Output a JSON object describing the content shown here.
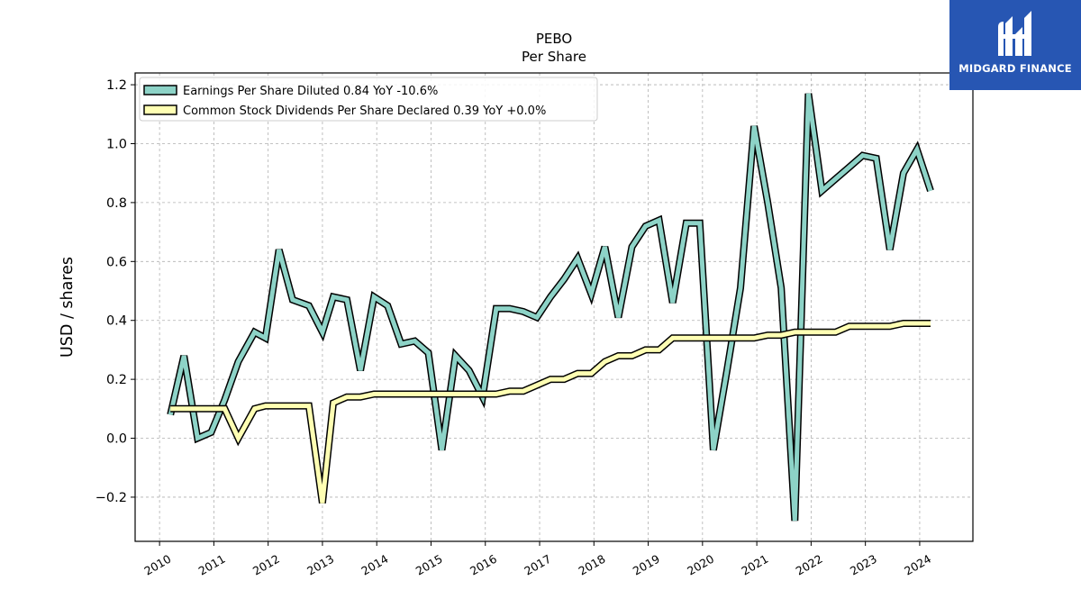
{
  "logo": {
    "text": "MIDGARD FINANCE",
    "icon": "midgard-logo-icon",
    "background": "#2756b3"
  },
  "chart_data": {
    "type": "line",
    "title": "PEBO",
    "subtitle": "Per  Share",
    "xlabel": "",
    "ylabel": "USD / shares",
    "xlim": [
      2009.55,
      2024.98
    ],
    "ylim": [
      -0.35,
      1.24
    ],
    "x_ticks": [
      2010,
      2011,
      2012,
      2013,
      2014,
      2015,
      2016,
      2017,
      2018,
      2019,
      2020,
      2021,
      2022,
      2023,
      2024
    ],
    "x_tick_labels": [
      "2010",
      "2011",
      "2012",
      "2013",
      "2014",
      "2015",
      "2016",
      "2017",
      "2018",
      "2019",
      "2020",
      "2021",
      "2022",
      "2023",
      "2024"
    ],
    "y_ticks": [
      -0.2,
      0.0,
      0.2,
      0.4,
      0.6,
      0.8,
      1.0,
      1.2
    ],
    "y_tick_labels": [
      "−0.2",
      "0.0",
      "0.2",
      "0.4",
      "0.6",
      "0.8",
      "1.0",
      "1.2"
    ],
    "grid": true,
    "legend_position": "top-left",
    "series": [
      {
        "name": "Earnings Per Share Diluted",
        "legend_value": "0.84 YoY -10.6%",
        "color": "#8dd3c7",
        "x": [
          2010.2,
          2010.45,
          2010.7,
          2010.95,
          2011.2,
          2011.45,
          2011.75,
          2011.95,
          2012.2,
          2012.45,
          2012.75,
          2013.0,
          2013.2,
          2013.45,
          2013.7,
          2013.95,
          2014.2,
          2014.45,
          2014.7,
          2014.95,
          2015.2,
          2015.45,
          2015.7,
          2015.95,
          2016.2,
          2016.45,
          2016.7,
          2016.95,
          2017.2,
          2017.45,
          2017.7,
          2017.95,
          2018.2,
          2018.45,
          2018.7,
          2018.95,
          2019.2,
          2019.45,
          2019.7,
          2019.95,
          2020.2,
          2020.45,
          2020.7,
          2020.95,
          2021.2,
          2021.45,
          2021.7,
          2021.95,
          2022.2,
          2022.45,
          2022.7,
          2022.95,
          2023.2,
          2023.45,
          2023.7,
          2023.95,
          2024.2
        ],
        "values": [
          0.08,
          0.28,
          0.0,
          0.02,
          0.13,
          0.26,
          0.36,
          0.34,
          0.64,
          0.47,
          0.45,
          0.36,
          0.48,
          0.47,
          0.23,
          0.48,
          0.45,
          0.32,
          0.33,
          0.29,
          -0.04,
          0.28,
          0.23,
          0.14,
          0.44,
          0.44,
          0.43,
          0.41,
          0.48,
          0.54,
          0.61,
          0.49,
          0.65,
          0.41,
          0.65,
          0.72,
          0.74,
          0.46,
          0.73,
          0.73,
          -0.04,
          0.23,
          0.51,
          1.06,
          0.8,
          0.51,
          -0.28,
          1.17,
          0.84,
          0.88,
          0.92,
          0.96,
          0.95,
          0.64,
          0.9,
          0.98,
          0.84
        ]
      },
      {
        "name": "Common Stock Dividends Per Share Declared",
        "legend_value": "0.39 YoY +0.0%",
        "color": "#ffffb3",
        "x": [
          2010.2,
          2010.45,
          2010.7,
          2010.95,
          2011.2,
          2011.45,
          2011.75,
          2011.95,
          2012.2,
          2012.45,
          2012.75,
          2013.0,
          2013.2,
          2013.45,
          2013.7,
          2013.95,
          2014.2,
          2014.45,
          2014.7,
          2014.95,
          2015.2,
          2015.45,
          2015.7,
          2015.95,
          2016.2,
          2016.45,
          2016.7,
          2016.95,
          2017.2,
          2017.45,
          2017.7,
          2017.95,
          2018.2,
          2018.45,
          2018.7,
          2018.95,
          2019.2,
          2019.45,
          2019.7,
          2019.95,
          2020.2,
          2020.45,
          2020.7,
          2020.95,
          2021.2,
          2021.45,
          2021.7,
          2021.95,
          2022.2,
          2022.45,
          2022.7,
          2022.95,
          2023.2,
          2023.45,
          2023.7,
          2023.95,
          2024.2
        ],
        "values": [
          0.1,
          0.1,
          0.1,
          0.1,
          0.1,
          0.0,
          0.1,
          0.11,
          0.11,
          0.11,
          0.11,
          -0.22,
          0.12,
          0.14,
          0.14,
          0.15,
          0.15,
          0.15,
          0.15,
          0.15,
          0.15,
          0.15,
          0.15,
          0.15,
          0.15,
          0.16,
          0.16,
          0.18,
          0.2,
          0.2,
          0.22,
          0.22,
          0.26,
          0.28,
          0.28,
          0.3,
          0.3,
          0.34,
          0.34,
          0.34,
          0.34,
          0.34,
          0.34,
          0.34,
          0.35,
          0.35,
          0.36,
          0.36,
          0.36,
          0.36,
          0.38,
          0.38,
          0.38,
          0.38,
          0.39,
          0.39,
          0.39
        ]
      }
    ]
  }
}
